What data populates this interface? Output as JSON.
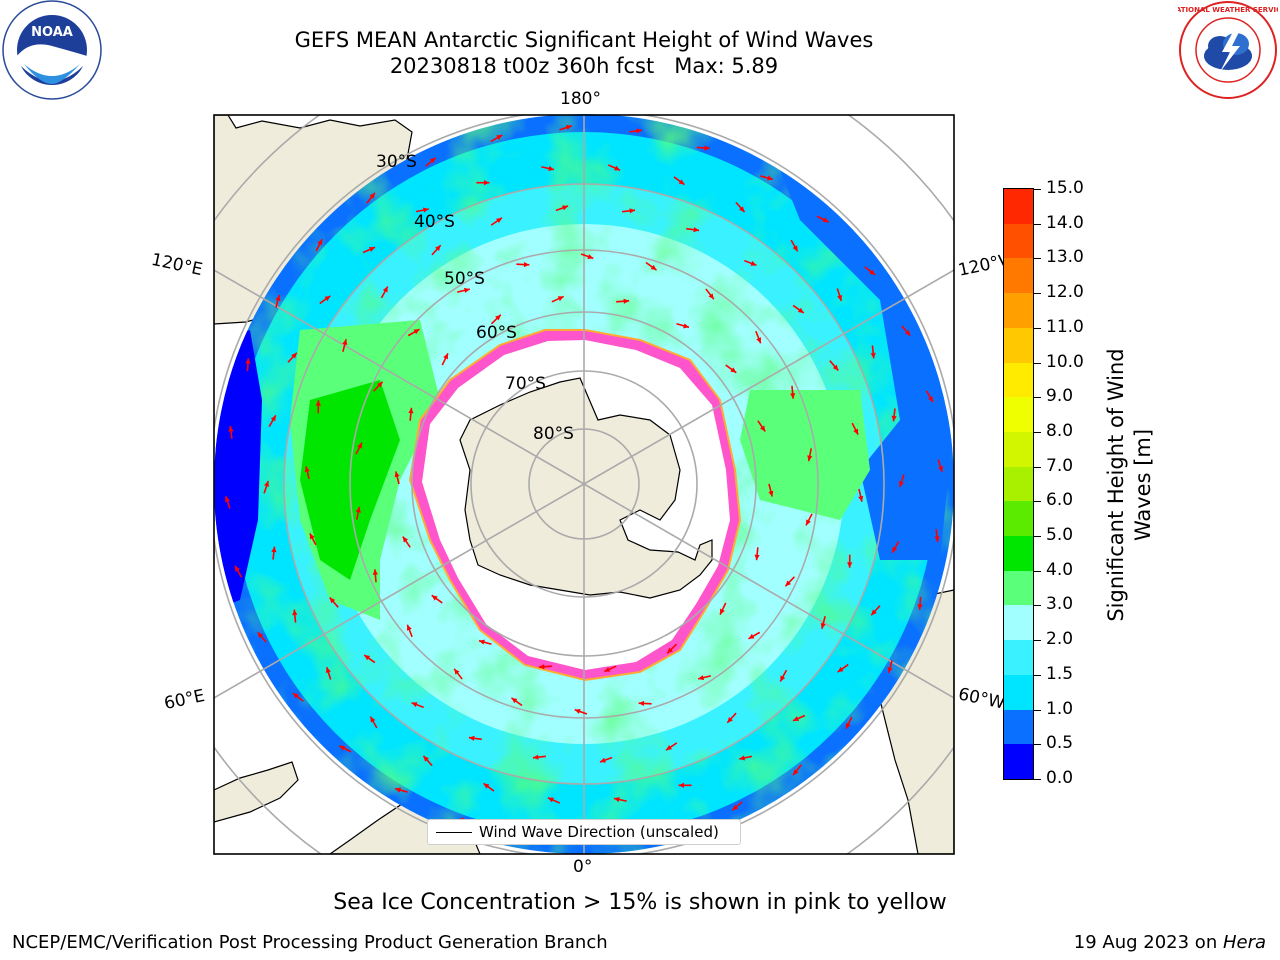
{
  "title": {
    "line1": "GEFS MEAN Antarctic Significant Height of Wind Waves",
    "line2": "20230818 t00z 360h fcst   Max: 5.89"
  },
  "logos": {
    "left": {
      "name": "NOAA",
      "ring_text": "NATIONAL OCEANIC AND ATMOSPHERIC ADMINISTRATION",
      "bottom_text": "U.S. DEPARTMENT OF COMMERCE"
    },
    "right": {
      "name": "NATIONAL WEATHER SERVICE"
    }
  },
  "map": {
    "projection": "south-polar-stereographic",
    "longitude_labels": [
      "180°",
      "120°E",
      "120°W",
      "60°E",
      "60°W",
      "0°"
    ],
    "latitude_labels": [
      "30°S",
      "40°S",
      "50°S",
      "60°S",
      "70°S",
      "80°S"
    ],
    "colors": {
      "land": "#efecdc",
      "ice_interior": "#ffffff",
      "vector": "#ff0000",
      "ice_edge": "#ff33cc"
    }
  },
  "legend": {
    "label": "Wind Wave Direction (unscaled)"
  },
  "colorbar": {
    "label_line1": "Significant Height of Wind",
    "label_line2": "Waves [m]",
    "ticks": [
      "15.0",
      "14.0",
      "13.0",
      "12.0",
      "11.0",
      "10.0",
      "9.0",
      "8.0",
      "7.0",
      "6.0",
      "5.0",
      "4.0",
      "3.0",
      "2.0",
      "1.5",
      "1.0",
      "0.5",
      "0.0"
    ],
    "colors": [
      "#0000ff",
      "#0a70ff",
      "#00e5ff",
      "#3af2ff",
      "#a2ffff",
      "#5aff7a",
      "#00e600",
      "#5aeb00",
      "#a8f000",
      "#d2f500",
      "#f0ff00",
      "#ffeb00",
      "#ffc800",
      "#ffa000",
      "#ff7800",
      "#ff5000",
      "#ff2800",
      "#ff0000"
    ]
  },
  "caption": "Sea Ice Concentration > 15% is shown in pink to yellow",
  "footer": {
    "left": "NCEP/EMC/Verification Post Processing Product Generation Branch",
    "right_prefix": "19 Aug 2023 on ",
    "right_machine": "Hera"
  }
}
